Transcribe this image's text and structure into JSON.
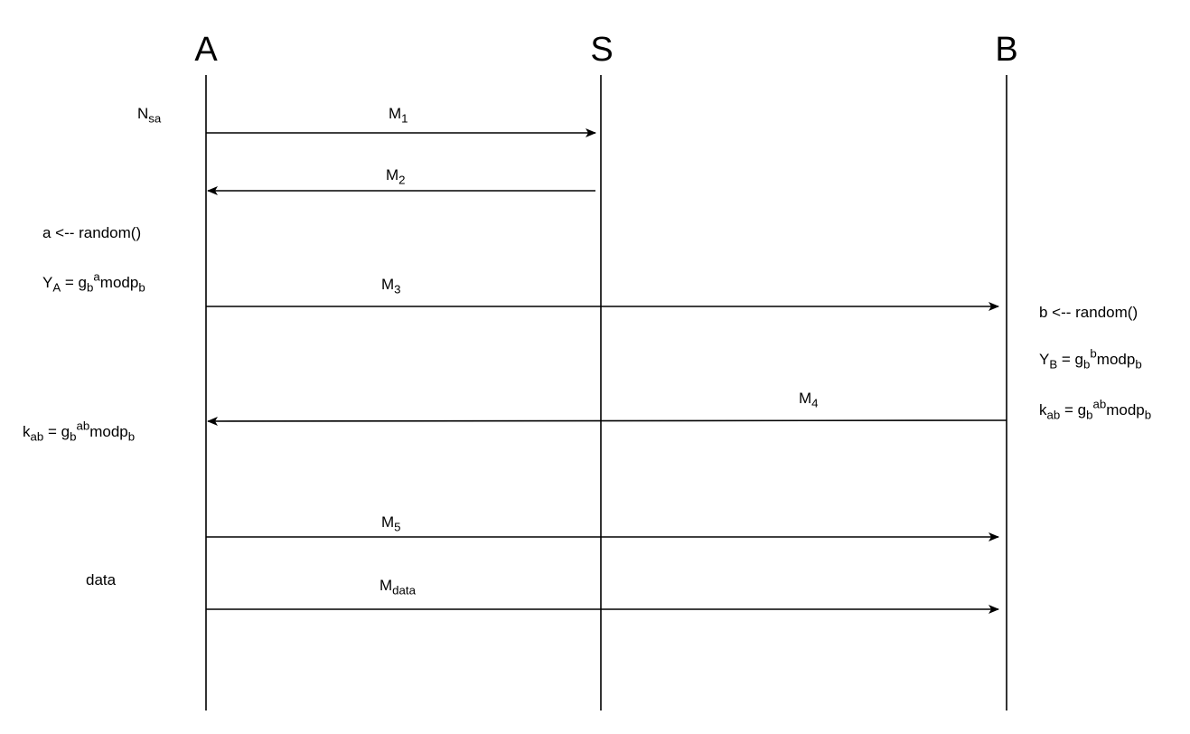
{
  "parties": {
    "a": "A",
    "s": "S",
    "b": "B"
  },
  "messages": {
    "m1": {
      "base": "M",
      "sub": "1"
    },
    "m2": {
      "base": "M",
      "sub": "2"
    },
    "m3": {
      "base": "M",
      "sub": "3"
    },
    "m4": {
      "base": "M",
      "sub": "4"
    },
    "m5": {
      "base": "M",
      "sub": "5"
    },
    "mdata": {
      "base": "M",
      "sub": "data"
    }
  },
  "left_notes": {
    "nsa": {
      "base": "N",
      "sub": "sa"
    },
    "a_random": "a <-- random()",
    "ya": {
      "y": "Y",
      "y_sub": "A",
      "eq": " = g",
      "g_sub": "b",
      "exp": "a",
      "mod": "modp",
      "p_sub": "b"
    },
    "kab": {
      "k": "k",
      "k_sub": "ab",
      "eq": " = g",
      "g_sub": "b",
      "exp": "ab",
      "mod": "modp",
      "p_sub": "b"
    },
    "data": "data"
  },
  "right_notes": {
    "b_random": "b <-- random()",
    "yb": {
      "y": "Y",
      "y_sub": "B",
      "eq": " = g",
      "g_sub": "b",
      "exp": "b",
      "mod": "modp",
      "p_sub": "b"
    },
    "kab": {
      "k": "k",
      "k_sub": "ab",
      "eq": " = g",
      "g_sub": "b",
      "exp": "ab",
      "mod": "modp",
      "p_sub": "b"
    }
  }
}
